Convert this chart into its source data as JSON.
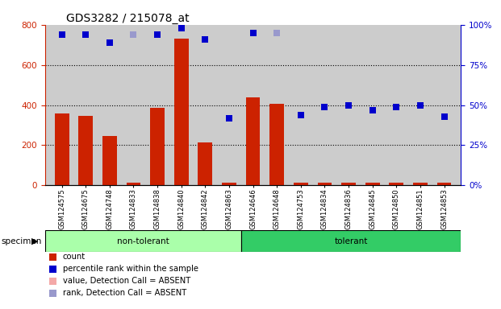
{
  "title": "GDS3282 / 215078_at",
  "samples": [
    "GSM124575",
    "GSM124675",
    "GSM124748",
    "GSM124833",
    "GSM124838",
    "GSM124840",
    "GSM124842",
    "GSM124863",
    "GSM124646",
    "GSM124648",
    "GSM124753",
    "GSM124834",
    "GSM124836",
    "GSM124845",
    "GSM124850",
    "GSM124851",
    "GSM124853"
  ],
  "non_tolerant_count": 8,
  "count_values": [
    360,
    345,
    245,
    15,
    385,
    730,
    215,
    12,
    440,
    405,
    12,
    14,
    12,
    12,
    12,
    12,
    12
  ],
  "rank_values": [
    94,
    94,
    89,
    94,
    94,
    98,
    91,
    42,
    95,
    95,
    44,
    49,
    50,
    47,
    49,
    50,
    43
  ],
  "absent_count": [
    false,
    false,
    false,
    false,
    false,
    false,
    false,
    false,
    false,
    false,
    false,
    false,
    false,
    false,
    false,
    false,
    false
  ],
  "absent_rank": [
    false,
    false,
    false,
    true,
    false,
    false,
    false,
    false,
    false,
    true,
    false,
    false,
    false,
    false,
    false,
    false,
    false
  ],
  "bar_color": "#cc2200",
  "bar_color_absent": "#f4a9a8",
  "rank_color": "#0000cc",
  "rank_color_absent": "#9999cc",
  "bg_color": "#cccccc",
  "nt_color": "#aaffaa",
  "t_color": "#33cc66",
  "ylim_left": [
    0,
    800
  ],
  "ylim_right": [
    0,
    100
  ],
  "yticks_left": [
    0,
    200,
    400,
    600,
    800
  ],
  "yticks_right": [
    0,
    25,
    50,
    75,
    100
  ],
  "grid_values": [
    200,
    400,
    600
  ],
  "title_fontsize": 10
}
